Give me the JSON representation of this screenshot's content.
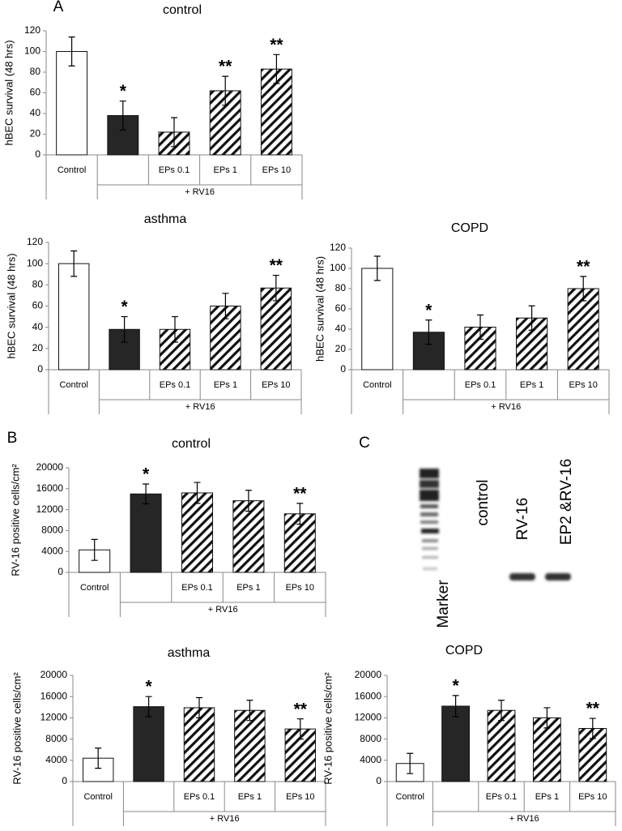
{
  "panel_letters": [
    "A",
    "B",
    "C"
  ],
  "chart_data": [
    {
      "type": "bar",
      "title": "control",
      "y_label": "hBEC survival (48 hrs)",
      "categories": [
        "Control",
        null,
        "EPs 0.1",
        "EPs 1",
        "EPs 10"
      ],
      "group_label": "+ RV16",
      "values": [
        100,
        38,
        22,
        62,
        83
      ],
      "errors": [
        14,
        14,
        14,
        14,
        14
      ],
      "annotations": [
        null,
        "*",
        null,
        "**",
        "**"
      ],
      "fills": [
        "#ffffff",
        "#262626",
        "hatch",
        "hatch",
        "hatch"
      ],
      "ylim": [
        0,
        120
      ],
      "yticks": [
        0,
        20,
        40,
        60,
        80,
        100,
        120
      ]
    },
    {
      "type": "bar",
      "title": "asthma",
      "y_label": "hBEC survival (48 hrs)",
      "categories": [
        "Control",
        null,
        "EPs 0.1",
        "EPs 1",
        "EPs 10"
      ],
      "group_label": "+ RV16",
      "values": [
        100,
        38,
        38,
        60,
        77
      ],
      "errors": [
        12,
        12,
        12,
        12,
        12
      ],
      "annotations": [
        null,
        "*",
        null,
        null,
        "**"
      ],
      "fills": [
        "#ffffff",
        "#262626",
        "hatch",
        "hatch",
        "hatch"
      ],
      "ylim": [
        0,
        120
      ],
      "yticks": [
        0,
        20,
        40,
        60,
        80,
        100,
        120
      ]
    },
    {
      "type": "bar",
      "title": "COPD",
      "y_label": "hBEC survival (48 hrs)",
      "categories": [
        "Control",
        null,
        "EPs 0.1",
        "EPs 1",
        "EPs 10"
      ],
      "group_label": "+ RV16",
      "values": [
        100,
        37,
        42,
        51,
        80
      ],
      "errors": [
        12,
        12,
        12,
        12,
        12
      ],
      "annotations": [
        null,
        "*",
        null,
        null,
        "**"
      ],
      "fills": [
        "#ffffff",
        "#262626",
        "hatch",
        "hatch",
        "hatch"
      ],
      "ylim": [
        0,
        120
      ],
      "yticks": [
        0,
        20,
        40,
        60,
        80,
        100,
        120
      ]
    },
    {
      "type": "bar",
      "title": "control",
      "y_label": "RV-16 positive cells/cm²",
      "categories": [
        "Control",
        null,
        "EPs 0.1",
        "EPs 1",
        "EPs 10"
      ],
      "group_label": "+ RV16",
      "values": [
        4300,
        15000,
        15200,
        13700,
        11200
      ],
      "errors": [
        2000,
        1900,
        2000,
        2000,
        2000
      ],
      "annotations": [
        null,
        "*",
        null,
        null,
        "**"
      ],
      "fills": [
        "#ffffff",
        "#262626",
        "hatch",
        "hatch",
        "hatch"
      ],
      "ylim": [
        0,
        20000
      ],
      "yticks": [
        0,
        4000,
        8000,
        12000,
        16000,
        20000
      ]
    },
    {
      "type": "bar",
      "title": "asthma",
      "y_label": "RV-16 positive cells/cm²",
      "categories": [
        "Control",
        null,
        "EPs 0.1",
        "EPs 1",
        "EPs 10"
      ],
      "group_label": "+ RV16",
      "values": [
        4400,
        14100,
        13900,
        13400,
        9900
      ],
      "errors": [
        1900,
        1900,
        1900,
        1900,
        1900
      ],
      "annotations": [
        null,
        "*",
        null,
        null,
        "**"
      ],
      "fills": [
        "#ffffff",
        "#262626",
        "hatch",
        "hatch",
        "hatch"
      ],
      "ylim": [
        0,
        20000
      ],
      "yticks": [
        0,
        4000,
        8000,
        12000,
        16000,
        20000
      ]
    },
    {
      "type": "bar",
      "title": "COPD",
      "y_label": "RV-16 positive cells/cm²",
      "categories": [
        "Control",
        null,
        "EPs 0.1",
        "EPs 1",
        "EPs 10"
      ],
      "group_label": "+ RV16",
      "values": [
        3400,
        14200,
        13400,
        12000,
        10000
      ],
      "errors": [
        1900,
        2000,
        1900,
        1900,
        1900
      ],
      "annotations": [
        null,
        "*",
        null,
        null,
        "**"
      ],
      "fills": [
        "#ffffff",
        "#262626",
        "hatch",
        "hatch",
        "hatch"
      ],
      "ylim": [
        0,
        20000
      ],
      "yticks": [
        0,
        4000,
        8000,
        12000,
        16000,
        20000
      ]
    }
  ],
  "blot": {
    "lanes": [
      "Marker",
      "control",
      "RV-16",
      "EP2 &RV-16"
    ]
  }
}
